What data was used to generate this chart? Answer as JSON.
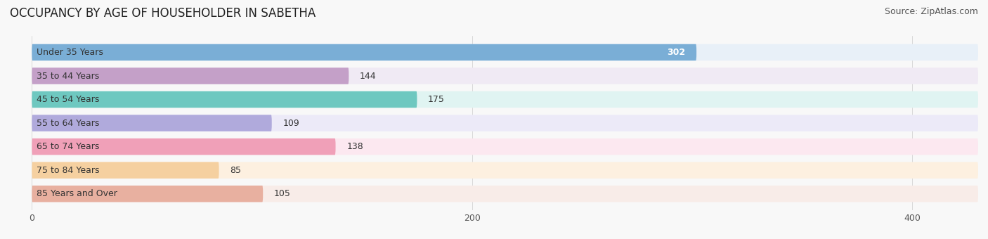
{
  "title": "OCCUPANCY BY AGE OF HOUSEHOLDER IN SABETHA",
  "source": "Source: ZipAtlas.com",
  "categories": [
    "Under 35 Years",
    "35 to 44 Years",
    "45 to 54 Years",
    "55 to 64 Years",
    "65 to 74 Years",
    "75 to 84 Years",
    "85 Years and Over"
  ],
  "values": [
    302,
    144,
    175,
    109,
    138,
    85,
    105
  ],
  "bar_colors": [
    "#7aaed6",
    "#c4a0c8",
    "#6ec8c0",
    "#b0aadc",
    "#f0a0b8",
    "#f5d0a0",
    "#e8b0a0"
  ],
  "bar_bg_colors": [
    "#e8f0f8",
    "#f0eaf4",
    "#e0f4f2",
    "#eceaf8",
    "#fce8f0",
    "#fdf0e0",
    "#f8ece8"
  ],
  "xlim": [
    -10,
    430
  ],
  "xticks": [
    0,
    200,
    400
  ],
  "title_fontsize": 12,
  "source_fontsize": 9,
  "label_fontsize": 9,
  "value_fontsize": 9,
  "background_color": "#f8f8f8"
}
